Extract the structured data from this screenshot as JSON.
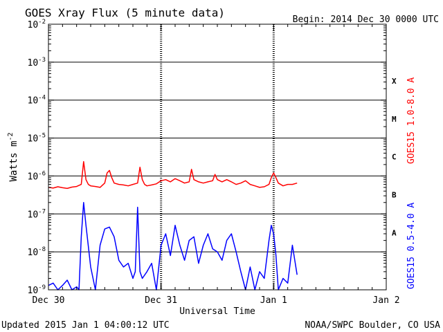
{
  "chart_data": {
    "type": "line",
    "title": "GOES Xray Flux (5 minute data)",
    "begin": "Begin:  2014 Dec 30 0000 UTC",
    "xlabel": "Universal Time",
    "ylabel": "Watts m",
    "ylabel_sup": "-2",
    "yscale": "log",
    "xlim": [
      0,
      72
    ],
    "ylim": [
      1e-09,
      0.01
    ],
    "grid": true,
    "x_unit": "hours since begin",
    "x_ticks": [
      {
        "x": 0,
        "label": "Dec 30"
      },
      {
        "x": 24,
        "label": "Dec 31"
      },
      {
        "x": 48,
        "label": "Jan 1"
      },
      {
        "x": 72,
        "label": "Jan 2"
      }
    ],
    "y_ticks": [
      {
        "value": 1e-09,
        "base": "10",
        "exp": "-9"
      },
      {
        "value": 1e-08,
        "base": "10",
        "exp": "-8"
      },
      {
        "value": 1e-07,
        "base": "10",
        "exp": "-7"
      },
      {
        "value": 1e-06,
        "base": "10",
        "exp": "-6"
      },
      {
        "value": 1e-05,
        "base": "10",
        "exp": "-5"
      },
      {
        "value": 0.0001,
        "base": "10",
        "exp": "-4"
      },
      {
        "value": 0.001,
        "base": "10",
        "exp": "-3"
      },
      {
        "value": 0.01,
        "base": "10",
        "exp": "-2"
      }
    ],
    "flare_classes": [
      {
        "label": "X",
        "value": 0.00032
      },
      {
        "label": "M",
        "value": 3.2e-05
      },
      {
        "label": "C",
        "value": 3.2e-06
      },
      {
        "label": "B",
        "value": 3.2e-07
      },
      {
        "label": "A",
        "value": 3.2e-08
      }
    ],
    "series": [
      {
        "name": "GOES15 1.0-8.0 A",
        "color": "#ff0000",
        "x": [
          0,
          1,
          2,
          3,
          4,
          5,
          6,
          7,
          7.5,
          8,
          8.5,
          9,
          10,
          11,
          12,
          12.5,
          13,
          13.5,
          14,
          15,
          16,
          17,
          18,
          19,
          19.5,
          20,
          20.5,
          21,
          22,
          23,
          24,
          25,
          26,
          27,
          28,
          29,
          30,
          30.5,
          31,
          32,
          33,
          34,
          35,
          35.5,
          36,
          37,
          38,
          39,
          40,
          41,
          42,
          43,
          44,
          45,
          46,
          47,
          47.5,
          48,
          48.5,
          49,
          50,
          51,
          52,
          53
        ],
        "values": [
          5e-07,
          4.8e-07,
          5.2e-07,
          4.9e-07,
          4.7e-07,
          5.1e-07,
          5.3e-07,
          6e-07,
          2.4e-06,
          8e-07,
          6e-07,
          5.5e-07,
          5.3e-07,
          5e-07,
          6.5e-07,
          1.2e-06,
          1.4e-06,
          9e-07,
          6.5e-07,
          6e-07,
          5.8e-07,
          5.5e-07,
          6e-07,
          6.5e-07,
          1.7e-06,
          8e-07,
          6e-07,
          5.5e-07,
          5.8e-07,
          6.2e-07,
          7.5e-07,
          8e-07,
          7e-07,
          8.5e-07,
          7.5e-07,
          6.5e-07,
          7e-07,
          1.5e-06,
          8e-07,
          7e-07,
          6.5e-07,
          7e-07,
          7.5e-07,
          1.1e-06,
          8e-07,
          7e-07,
          8e-07,
          7e-07,
          6e-07,
          6.5e-07,
          7.5e-07,
          6e-07,
          5.5e-07,
          5e-07,
          5.2e-07,
          6e-07,
          9e-07,
          1.2e-06,
          9e-07,
          6.5e-07,
          5.5e-07,
          6e-07,
          6e-07,
          6.5e-07
        ]
      },
      {
        "name": "GOES15 0.5-4.0 A",
        "color": "#0000ff",
        "x": [
          0,
          1,
          2,
          3,
          4,
          5,
          6,
          6.5,
          7,
          7.5,
          8,
          9,
          10,
          11,
          12,
          13,
          14,
          15,
          16,
          17,
          18,
          18.5,
          19,
          19.5,
          20,
          21,
          22,
          23,
          24,
          25,
          26,
          27,
          28,
          29,
          30,
          31,
          32,
          33,
          34,
          35,
          36,
          37,
          38,
          39,
          40,
          41,
          42,
          43,
          44,
          45,
          46,
          47,
          47.5,
          48,
          48.5,
          49,
          50,
          51,
          52,
          53
        ],
        "values": [
          1.3e-09,
          1.5e-09,
          1e-09,
          1.3e-09,
          1.8e-09,
          1e-09,
          1.2e-09,
          1e-09,
          2.5e-08,
          2e-07,
          5e-08,
          4e-09,
          1e-09,
          1.5e-08,
          4e-08,
          4.5e-08,
          2.5e-08,
          6e-09,
          4e-09,
          5e-09,
          2e-09,
          3e-09,
          1.5e-07,
          3e-09,
          2e-09,
          3e-09,
          5e-09,
          1e-09,
          1.5e-08,
          3e-08,
          8e-09,
          5e-08,
          1.5e-08,
          6e-09,
          2e-08,
          2.5e-08,
          5e-09,
          1.5e-08,
          3e-08,
          1.2e-08,
          1e-08,
          6e-09,
          2e-08,
          3e-08,
          1e-08,
          3e-09,
          1e-09,
          4e-09,
          1e-09,
          3e-09,
          2e-09,
          2e-08,
          5e-08,
          3e-08,
          8e-09,
          1e-09,
          2e-09,
          1.5e-09,
          1.5e-08,
          2.5e-09
        ]
      }
    ]
  },
  "footer": {
    "updated": "Updated 2015 Jan  1 04:00:12 UTC",
    "source": "NOAA/SWPC Boulder, CO USA"
  }
}
